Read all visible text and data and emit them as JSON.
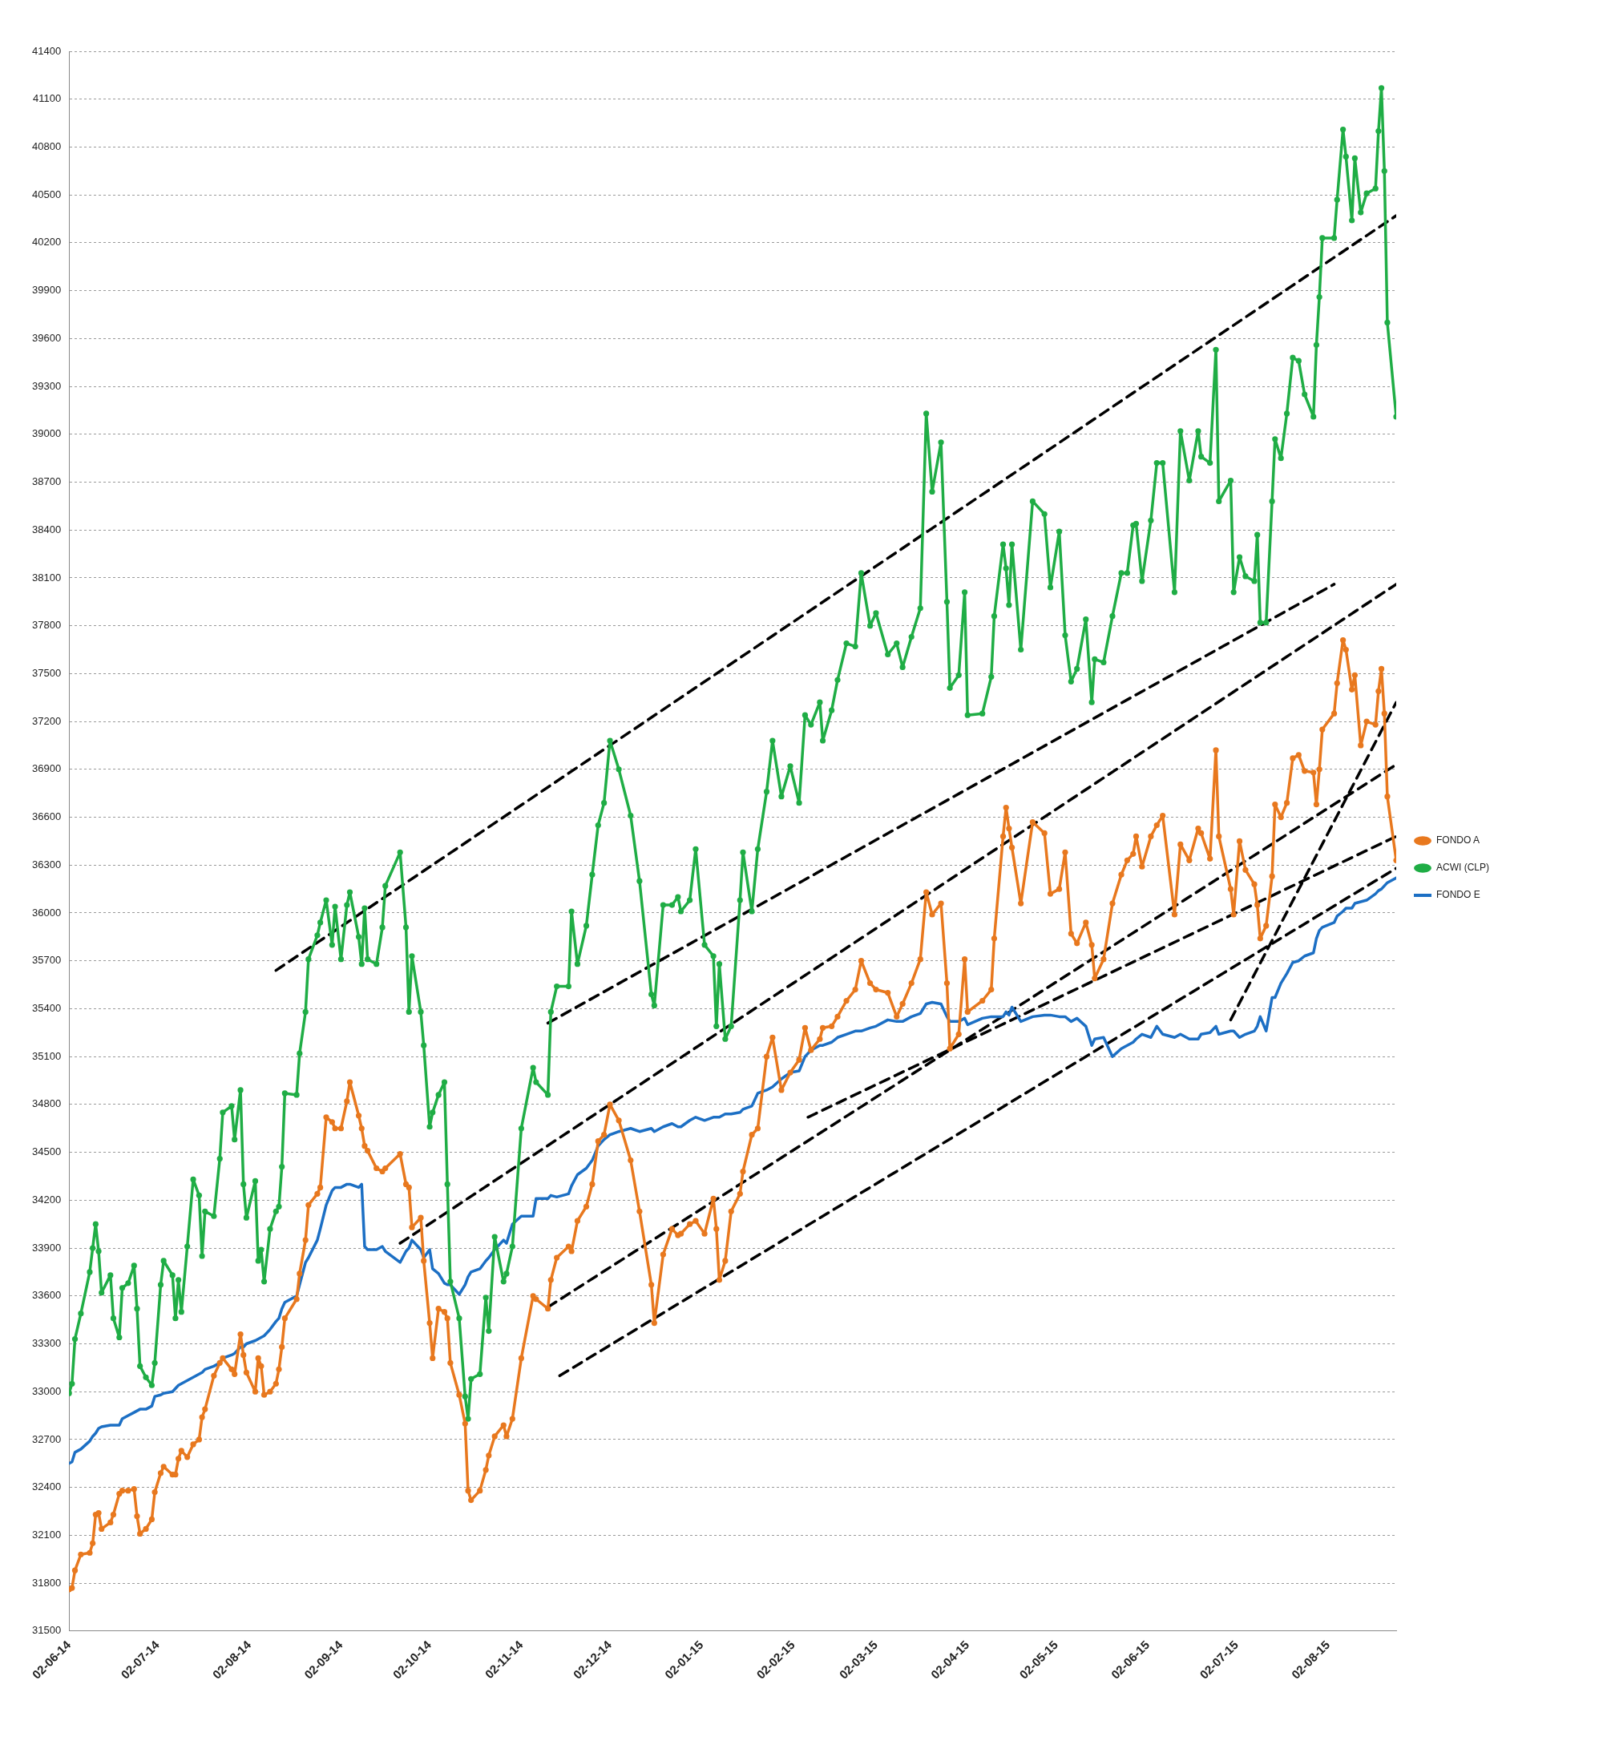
{
  "chart_data": {
    "type": "line",
    "x": [
      "2014-06-02",
      "2014-06-03",
      "2014-06-04",
      "2014-06-06",
      "2014-06-09",
      "2014-06-10",
      "2014-06-11",
      "2014-06-12",
      "2014-06-13",
      "2014-06-16",
      "2014-06-17",
      "2014-06-19",
      "2014-06-20",
      "2014-06-22",
      "2014-06-24",
      "2014-06-25",
      "2014-06-26",
      "2014-06-28",
      "2014-06-30",
      "2014-07-01",
      "2014-07-03",
      "2014-07-04",
      "2014-07-07",
      "2014-07-08",
      "2014-07-09",
      "2014-07-10",
      "2014-07-12",
      "2014-07-14",
      "2014-07-16",
      "2014-07-17",
      "2014-07-18",
      "2014-07-21",
      "2014-07-23",
      "2014-07-24",
      "2014-07-27",
      "2014-07-28",
      "2014-07-30",
      "2014-07-31",
      "2014-08-01",
      "2014-08-04",
      "2014-08-05",
      "2014-08-06",
      "2014-08-07",
      "2014-08-09",
      "2014-08-11",
      "2014-08-12",
      "2014-08-13",
      "2014-08-14",
      "2014-08-18",
      "2014-08-19",
      "2014-08-21",
      "2014-08-22",
      "2014-08-25",
      "2014-08-26",
      "2014-08-28",
      "2014-08-30",
      "2014-08-31",
      "2014-09-02",
      "2014-09-04",
      "2014-09-05",
      "2014-09-08",
      "2014-09-09",
      "2014-09-10",
      "2014-09-11",
      "2014-09-14",
      "2014-09-16",
      "2014-09-17",
      "2014-09-22",
      "2014-09-24",
      "2014-09-25",
      "2014-09-26",
      "2014-09-29",
      "2014-09-30",
      "2014-10-02",
      "2014-10-03",
      "2014-10-05",
      "2014-10-07",
      "2014-10-08",
      "2014-10-09",
      "2014-10-12",
      "2014-10-14",
      "2014-10-15",
      "2014-10-16",
      "2014-10-19",
      "2014-10-21",
      "2014-10-22",
      "2014-10-24",
      "2014-10-27",
      "2014-10-28",
      "2014-10-30",
      "2014-11-02",
      "2014-11-06",
      "2014-11-07",
      "2014-11-11",
      "2014-11-12",
      "2014-11-14",
      "2014-11-18",
      "2014-11-19",
      "2014-11-21",
      "2014-11-24",
      "2014-11-26",
      "2014-11-28",
      "2014-11-30",
      "2014-12-02",
      "2014-12-05",
      "2014-12-09",
      "2014-12-12",
      "2014-12-16",
      "2014-12-17",
      "2014-12-20",
      "2014-12-23",
      "2014-12-25",
      "2014-12-26",
      "2014-12-29",
      "2014-12-31",
      "2015-01-03",
      "2015-01-06",
      "2015-01-07",
      "2015-01-08",
      "2015-01-10",
      "2015-01-12",
      "2015-01-15",
      "2015-01-16",
      "2015-01-19",
      "2015-01-21",
      "2015-01-24",
      "2015-01-26",
      "2015-01-29",
      "2015-02-01",
      "2015-02-04",
      "2015-02-06",
      "2015-02-08",
      "2015-02-11",
      "2015-02-12",
      "2015-02-15",
      "2015-02-17",
      "2015-02-20",
      "2015-02-23",
      "2015-02-25",
      "2015-02-28",
      "2015-03-02",
      "2015-03-06",
      "2015-03-09",
      "2015-03-11",
      "2015-03-14",
      "2015-03-17",
      "2015-03-19",
      "2015-03-21",
      "2015-03-24",
      "2015-03-26",
      "2015-03-27",
      "2015-03-30",
      "2015-04-01",
      "2015-04-02",
      "2015-04-07",
      "2015-04-10",
      "2015-04-11",
      "2015-04-14",
      "2015-04-15",
      "2015-04-16",
      "2015-04-17",
      "2015-04-20",
      "2015-04-24",
      "2015-04-28",
      "2015-04-30",
      "2015-05-03",
      "2015-05-05",
      "2015-05-07",
      "2015-05-09",
      "2015-05-12",
      "2015-05-14",
      "2015-05-15",
      "2015-05-18",
      "2015-05-21",
      "2015-05-24",
      "2015-05-26",
      "2015-05-28",
      "2015-05-29",
      "2015-05-31",
      "2015-06-03",
      "2015-06-05",
      "2015-06-07",
      "2015-06-11",
      "2015-06-13",
      "2015-06-16",
      "2015-06-19",
      "2015-06-20",
      "2015-06-23",
      "2015-06-25",
      "2015-06-26",
      "2015-06-30",
      "2015-07-01",
      "2015-07-03",
      "2015-07-05",
      "2015-07-08",
      "2015-07-09",
      "2015-07-10",
      "2015-07-12",
      "2015-07-14",
      "2015-07-15",
      "2015-07-17",
      "2015-07-19",
      "2015-07-21",
      "2015-07-23",
      "2015-07-25",
      "2015-07-28",
      "2015-07-29",
      "2015-07-30",
      "2015-07-31",
      "2015-08-04",
      "2015-08-05",
      "2015-08-07",
      "2015-08-08",
      "2015-08-10",
      "2015-08-11",
      "2015-08-13",
      "2015-08-15",
      "2015-08-18",
      "2015-08-19",
      "2015-08-20",
      "2015-08-21",
      "2015-08-22",
      "2015-08-25"
    ],
    "series": [
      {
        "name": "FONDO A",
        "color": "#e8781e",
        "marker": "circle",
        "values": [
          31760,
          31770,
          31880,
          31980,
          31990,
          32050,
          32230,
          32240,
          32140,
          32180,
          32230,
          32360,
          32380,
          32380,
          32390,
          32220,
          32110,
          32140,
          32200,
          32370,
          32490,
          32530,
          32480,
          32480,
          32580,
          32630,
          32590,
          32670,
          32700,
          32840,
          32890,
          33100,
          33180,
          33210,
          33140,
          33110,
          33360,
          33230,
          33120,
          33000,
          33210,
          33160,
          32980,
          33000,
          33050,
          33140,
          33280,
          33460,
          33580,
          33740,
          33950,
          34170,
          34240,
          34280,
          34720,
          34690,
          34650,
          34650,
          34820,
          34940,
          34730,
          34650,
          34540,
          34510,
          34400,
          34380,
          34400,
          34490,
          34300,
          34280,
          34030,
          34090,
          33820,
          33430,
          33210,
          33520,
          33500,
          33460,
          33180,
          32980,
          32800,
          32380,
          32320,
          32380,
          32510,
          32600,
          32720,
          32790,
          32720,
          32830,
          33210,
          33600,
          33580,
          33520,
          33700,
          33840,
          33910,
          33880,
          34070,
          34160,
          34300,
          34570,
          34610,
          34800,
          34700,
          34450,
          34130,
          33670,
          33430,
          33860,
          34020,
          33980,
          33990,
          34050,
          34070,
          33990,
          34210,
          34020,
          33700,
          33820,
          34130,
          34240,
          34380,
          34610,
          34650,
          35100,
          35220,
          34890,
          35000,
          35080,
          35280,
          35140,
          35210,
          35280,
          35290,
          35350,
          35450,
          35520,
          35700,
          35560,
          35520,
          35500,
          35350,
          35430,
          35560,
          35710,
          36130,
          35990,
          36060,
          35560,
          35150,
          35240,
          35710,
          35380,
          35450,
          35520,
          35840,
          36480,
          36660,
          36530,
          36410,
          36060,
          36570,
          36500,
          36120,
          36150,
          36380,
          35870,
          35810,
          35940,
          35800,
          35590,
          35710,
          36060,
          36240,
          36330,
          36370,
          36480,
          36290,
          36480,
          36550,
          36610,
          35990,
          36430,
          36330,
          36530,
          36500,
          36340,
          37020,
          36480,
          36150,
          35990,
          36450,
          36270,
          36180,
          36050,
          35840,
          35920,
          36230,
          36680,
          36600,
          36690,
          36970,
          36990,
          36890,
          36880,
          36680,
          36900,
          37150,
          37250,
          37440,
          37710,
          37650,
          37400,
          37490,
          37050,
          37200,
          37180,
          37390,
          37530,
          37250,
          36730,
          36330
        ]
      },
      {
        "name": "ACWI (CLP)",
        "color": "#1fad45",
        "marker": "circle",
        "values": [
          32990,
          33050,
          33330,
          33490,
          33750,
          33900,
          34050,
          33880,
          33620,
          33730,
          33460,
          33340,
          33650,
          33680,
          33790,
          33520,
          33160,
          33090,
          33040,
          33180,
          33670,
          33820,
          33730,
          33460,
          33700,
          33500,
          33910,
          34330,
          34230,
          33850,
          34130,
          34100,
          34460,
          34750,
          34790,
          34580,
          34890,
          34300,
          34090,
          34320,
          33820,
          33890,
          33690,
          34020,
          34130,
          34160,
          34410,
          34870,
          34860,
          35120,
          35380,
          35710,
          35860,
          35940,
          36080,
          35800,
          36040,
          35710,
          36050,
          36130,
          35850,
          35680,
          36030,
          35710,
          35680,
          35910,
          36170,
          36380,
          35910,
          35380,
          35730,
          35380,
          35170,
          34660,
          34750,
          34860,
          34940,
          34300,
          33690,
          33460,
          32970,
          32830,
          33080,
          33110,
          33590,
          33380,
          33970,
          33690,
          33740,
          33910,
          34650,
          35030,
          34940,
          34860,
          35380,
          35540,
          35540,
          36010,
          35680,
          35920,
          36240,
          36550,
          36690,
          37080,
          36900,
          36610,
          36200,
          35490,
          35420,
          36050,
          36050,
          36100,
          36010,
          36080,
          36400,
          35800,
          35730,
          35290,
          35680,
          35210,
          35290,
          36080,
          36380,
          36010,
          36400,
          36760,
          37080,
          36730,
          36920,
          36690,
          37240,
          37180,
          37320,
          37080,
          37270,
          37460,
          37690,
          37670,
          38130,
          37800,
          37880,
          37620,
          37690,
          37540,
          37730,
          37910,
          39130,
          38640,
          38950,
          37950,
          37410,
          37490,
          38010,
          37240,
          37250,
          37480,
          37860,
          38310,
          38160,
          37930,
          38310,
          37650,
          38580,
          38500,
          38040,
          38390,
          37740,
          37450,
          37530,
          37840,
          37320,
          37590,
          37570,
          37860,
          38130,
          38130,
          38430,
          38440,
          38080,
          38460,
          38820,
          38820,
          38010,
          39020,
          38710,
          39020,
          38860,
          38820,
          39530,
          38580,
          38710,
          38010,
          38230,
          38110,
          38080,
          38370,
          37820,
          37820,
          38580,
          38970,
          38850,
          39130,
          39480,
          39460,
          39250,
          39110,
          39560,
          39860,
          40230,
          40230,
          40470,
          40910,
          40740,
          40340,
          40730,
          40390,
          40510,
          40540,
          40900,
          41170,
          40650,
          39700,
          39110
        ]
      },
      {
        "name": "FONDO E",
        "color": "#1c6fc4",
        "marker": "none",
        "values": [
          32550,
          32560,
          32620,
          32640,
          32690,
          32720,
          32740,
          32770,
          32780,
          32790,
          32790,
          32790,
          32830,
          32850,
          32870,
          32880,
          32890,
          32890,
          32910,
          32970,
          32980,
          32990,
          33000,
          33020,
          33040,
          33050,
          33070,
          33090,
          33110,
          33120,
          33140,
          33160,
          33180,
          33210,
          33230,
          33240,
          33280,
          33280,
          33300,
          33320,
          33330,
          33340,
          33350,
          33390,
          33440,
          33460,
          33520,
          33560,
          33600,
          33670,
          33810,
          33840,
          33950,
          34020,
          34170,
          34260,
          34280,
          34280,
          34300,
          34300,
          34280,
          34300,
          33910,
          33890,
          33890,
          33910,
          33880,
          33810,
          33880,
          33900,
          33950,
          33890,
          33840,
          33890,
          33770,
          33740,
          33680,
          33670,
          33670,
          33610,
          33670,
          33720,
          33750,
          33770,
          33820,
          33840,
          33890,
          33950,
          33930,
          34050,
          34100,
          34100,
          34210,
          34210,
          34230,
          34220,
          34240,
          34290,
          34360,
          34400,
          34450,
          34540,
          34580,
          34610,
          34630,
          34650,
          34630,
          34650,
          34630,
          34660,
          34680,
          34660,
          34660,
          34700,
          34720,
          34700,
          34720,
          34720,
          34720,
          34740,
          34740,
          34750,
          34770,
          34790,
          34870,
          34890,
          34910,
          34960,
          35000,
          35010,
          35100,
          35140,
          35170,
          35170,
          35190,
          35220,
          35240,
          35260,
          35260,
          35280,
          35290,
          35330,
          35320,
          35320,
          35350,
          35370,
          35430,
          35440,
          35430,
          35350,
          35320,
          35320,
          35340,
          35300,
          35340,
          35350,
          35350,
          35350,
          35380,
          35360,
          35410,
          35320,
          35350,
          35360,
          35360,
          35350,
          35350,
          35320,
          35340,
          35290,
          35170,
          35210,
          35220,
          35100,
          35150,
          35170,
          35190,
          35210,
          35240,
          35220,
          35290,
          35240,
          35220,
          35240,
          35210,
          35210,
          35240,
          35250,
          35290,
          35240,
          35260,
          35260,
          35220,
          35240,
          35260,
          35290,
          35350,
          35260,
          35470,
          35470,
          35560,
          35620,
          35690,
          35700,
          35730,
          35750,
          35840,
          35890,
          35910,
          35940,
          35980,
          36010,
          36030,
          36030,
          36060,
          36070,
          36080,
          36120,
          36140,
          36150,
          36170,
          36190,
          36220
        ]
      },
      {
        "type": "line",
        "color": "#000000",
        "line_style": "dashed",
        "marker": "none",
        "x": [
          "2014-08-11",
          "2015-08-25"
        ],
        "values": [
          35640,
          40370
        ]
      },
      {
        "type": "line",
        "color": "#000000",
        "line_style": "dashed",
        "marker": "none",
        "x": [
          "2014-11-11",
          "2015-08-04"
        ],
        "values": [
          35310,
          38060
        ]
      },
      {
        "type": "line",
        "color": "#000000",
        "line_style": "dashed",
        "marker": "none",
        "x": [
          "2014-09-22",
          "2015-08-25"
        ],
        "values": [
          33930,
          38060
        ]
      },
      {
        "type": "line",
        "color": "#000000",
        "line_style": "dashed",
        "marker": "none",
        "x": [
          "2014-11-11",
          "2015-08-25"
        ],
        "values": [
          33530,
          36930
        ]
      },
      {
        "type": "line",
        "color": "#000000",
        "line_style": "dashed",
        "marker": "none",
        "x": [
          "2014-11-15",
          "2015-08-25"
        ],
        "values": [
          33100,
          36280
        ]
      },
      {
        "type": "line",
        "color": "#000000",
        "line_style": "dashed",
        "marker": "none",
        "x": [
          "2015-02-07",
          "2015-08-25"
        ],
        "values": [
          34720,
          36480
        ]
      },
      {
        "type": "line",
        "color": "#000000",
        "line_style": "dashed",
        "marker": "none",
        "x": [
          "2015-06-30",
          "2015-08-25"
        ],
        "values": [
          35330,
          37320
        ]
      }
    ],
    "xlim": [
      "2014-06-02",
      "2015-08-25"
    ],
    "xticks": [
      {
        "value": "2014-06-02",
        "label": "02-06-14"
      },
      {
        "value": "2014-07-02",
        "label": "02-07-14"
      },
      {
        "value": "2014-08-02",
        "label": "02-08-14"
      },
      {
        "value": "2014-09-02",
        "label": "02-09-14"
      },
      {
        "value": "2014-10-02",
        "label": "02-10-14"
      },
      {
        "value": "2014-11-02",
        "label": "02-11-14"
      },
      {
        "value": "2014-12-02",
        "label": "02-12-14"
      },
      {
        "value": "2015-01-02",
        "label": "02-01-15"
      },
      {
        "value": "2015-02-02",
        "label": "02-02-15"
      },
      {
        "value": "2015-03-02",
        "label": "02-03-15"
      },
      {
        "value": "2015-04-02",
        "label": "02-04-15"
      },
      {
        "value": "2015-05-02",
        "label": "02-05-15"
      },
      {
        "value": "2015-06-02",
        "label": "02-06-15"
      },
      {
        "value": "2015-07-02",
        "label": "02-07-15"
      },
      {
        "value": "2015-08-02",
        "label": "02-08-15"
      }
    ],
    "ylim": [
      31500,
      41400
    ],
    "yticks": [
      31500,
      31800,
      32100,
      32400,
      32700,
      33000,
      33300,
      33600,
      33900,
      34200,
      34500,
      34800,
      35100,
      35400,
      35700,
      36000,
      36300,
      36600,
      36900,
      37200,
      37500,
      37800,
      38100,
      38400,
      38700,
      39000,
      39300,
      39600,
      39900,
      40200,
      40500,
      40800,
      41100,
      41400
    ],
    "grid": "y",
    "legend": "right"
  }
}
